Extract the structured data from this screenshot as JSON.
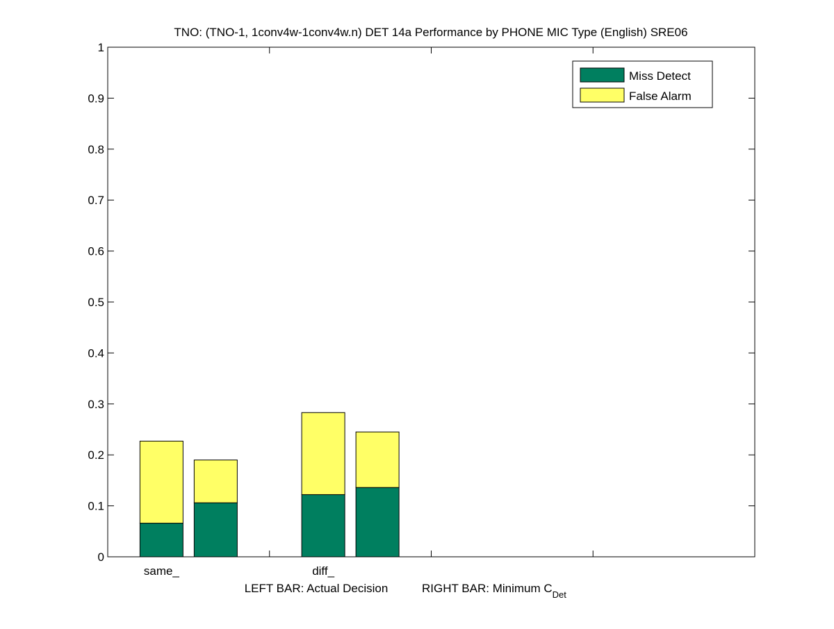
{
  "chart_data": {
    "type": "bar",
    "title": "TNO: (TNO-1, 1conv4w-1conv4w.n) DET 14a Performance by PHONE MIC Type (English) SRE06",
    "categories": [
      "same_",
      "diff_"
    ],
    "bar_pairs": [
      "Actual Decision",
      "Minimum C_Det"
    ],
    "series": [
      {
        "name": "Miss Detect",
        "color": "#007f5f",
        "values": [
          [
            0.066,
            0.106
          ],
          [
            0.122,
            0.136
          ]
        ]
      },
      {
        "name": "False Alarm",
        "color": "#ffff66",
        "values": [
          [
            0.161,
            0.084
          ],
          [
            0.161,
            0.109
          ]
        ]
      }
    ],
    "stack_totals": [
      [
        0.227,
        0.19
      ],
      [
        0.283,
        0.245
      ]
    ],
    "ylim": [
      0,
      1
    ],
    "yticks": [
      "0",
      "0.1",
      "0.2",
      "0.3",
      "0.4",
      "0.5",
      "0.6",
      "0.7",
      "0.8",
      "0.9",
      "1"
    ],
    "xlabel_left": "LEFT BAR: Actual Decision",
    "xlabel_right_main": "RIGHT BAR: Minimum C",
    "xlabel_right_sub": "Det",
    "legend_position": "top-right",
    "grid": false
  }
}
